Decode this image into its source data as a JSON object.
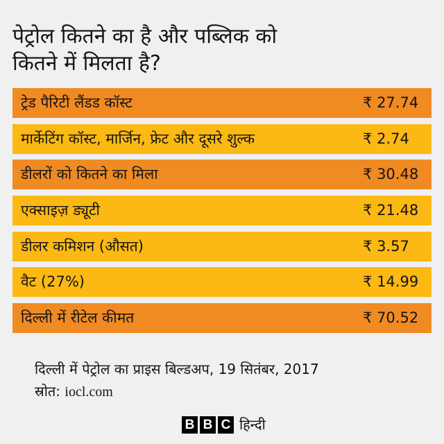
{
  "chart_data": {
    "type": "table",
    "title": [
      "पेट्रोल कितने का है और पब्लिक को",
      "कितने में मिलता है?"
    ],
    "currency": "₹",
    "rows": [
      {
        "label": "ट्रेड पैरिटी लैंडड कॉस्ट",
        "value": 27.74,
        "color": "#f08a23"
      },
      {
        "label": "मार्केटिंग कॉस्ट, मार्जिन, फ्रेट और दूसरे शुल्क",
        "value": 2.74,
        "color": "#fcb813"
      },
      {
        "label": "डीलरों को कितने का मिला",
        "value": 30.48,
        "color": "#f08a23"
      },
      {
        "label": "एक्साइज़ ड्यूटी",
        "value": 21.48,
        "color": "#fcb813"
      },
      {
        "label": "डीलर कमिशन (औसत)",
        "value": 3.57,
        "color": "#fcb813"
      },
      {
        "label": "वैट (27%)",
        "value": 14.99,
        "color": "#fcb813"
      },
      {
        "label": "दिल्ली में रीटेल कीमत",
        "value": 70.52,
        "color": "#f08a23"
      }
    ]
  },
  "footer": {
    "caption": "दिल्ली में पेट्रोल का प्राइस बिल्डअप, 19 सितंबर, 2017",
    "source_label": "स्रोत:",
    "source": "iocl.com"
  },
  "brand": {
    "letters": [
      "B",
      "B",
      "C"
    ],
    "language": "हिन्दी"
  },
  "colors": {
    "background": "#f0f0f0",
    "text": "#141414",
    "orange": "#f08a23",
    "yellow": "#fcb813",
    "logo": "#000000"
  }
}
